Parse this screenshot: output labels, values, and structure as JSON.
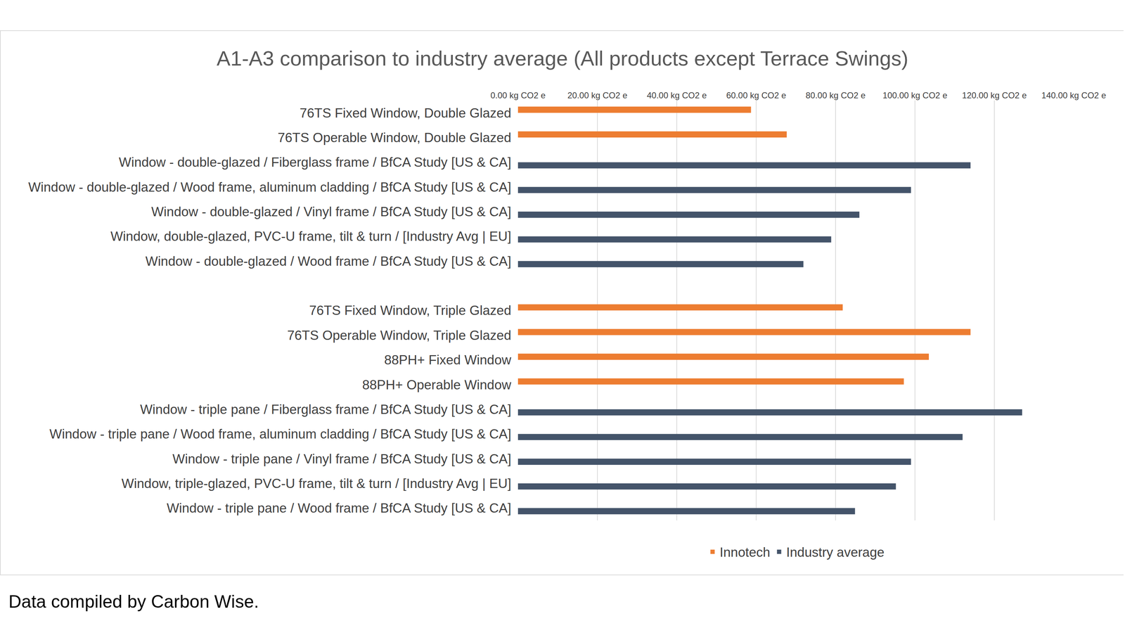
{
  "chart_data": {
    "type": "bar",
    "orientation": "horizontal",
    "title": "A1-A3 comparison to industry average (All products except Terrace Swings)",
    "caption": "Data compiled by Carbon Wise.",
    "categories": [
      "76TS Fixed Window, Double Glazed",
      "76TS Operable Window, Double Glazed",
      "Window - double-glazed / Fiberglass frame / BfCA Study [US & CA]",
      "Window - double-glazed / Wood frame, aluminum cladding / BfCA Study [US & CA]",
      "Window - double-glazed / Vinyl frame / BfCA Study [US & CA]",
      "Window, double-glazed, PVC-U frame, tilt & turn / [Industry Avg | EU]",
      "Window - double-glazed / Wood frame / BfCA Study [US & CA]",
      null,
      "76TS Fixed Window, Triple Glazed",
      "76TS Operable Window, Triple Glazed",
      "88PH+ Fixed Window",
      "88PH+ Operable Window",
      "Window - triple pane / Fiberglass frame / BfCA Study [US & CA]",
      "Window - triple pane / Wood frame, aluminum cladding / BfCA Study [US & CA]",
      "Window - triple pane / Vinyl frame / BfCA Study [US & CA]",
      "Window, triple-glazed, PVC-U frame, tilt & turn / [Industry Avg | EU]",
      "Window - triple pane / Wood frame / BfCA Study [US & CA]"
    ],
    "series": [
      {
        "name": "Innotech",
        "color": "#ED7D31",
        "values": [
          58.7,
          67.7,
          null,
          null,
          null,
          null,
          null,
          null,
          81.8,
          114.0,
          103.5,
          97.2,
          null,
          null,
          null,
          null,
          null
        ]
      },
      {
        "name": "Industry average",
        "color": "#44546A",
        "values": [
          null,
          null,
          114.0,
          99.0,
          86.0,
          78.9,
          71.9,
          null,
          null,
          null,
          null,
          null,
          127.0,
          112.0,
          99.0,
          95.2,
          84.9
        ]
      }
    ],
    "xlim": [
      0,
      140
    ],
    "xticks": [
      {
        "value": 0,
        "label": "0.00 kg CO2 e"
      },
      {
        "value": 20,
        "label": "20.00 kg CO2 e"
      },
      {
        "value": 40,
        "label": "40.00 kg CO2 e"
      },
      {
        "value": 60,
        "label": "60.00 kg CO2 e"
      },
      {
        "value": 80,
        "label": "80.00 kg CO2 e"
      },
      {
        "value": 100,
        "label": "100.00 kg CO2 e"
      },
      {
        "value": 120,
        "label": "120.00 kg CO2 e"
      },
      {
        "value": 140,
        "label": "140.00 kg CO2 e"
      }
    ],
    "grid": true,
    "legend": "bottom"
  }
}
